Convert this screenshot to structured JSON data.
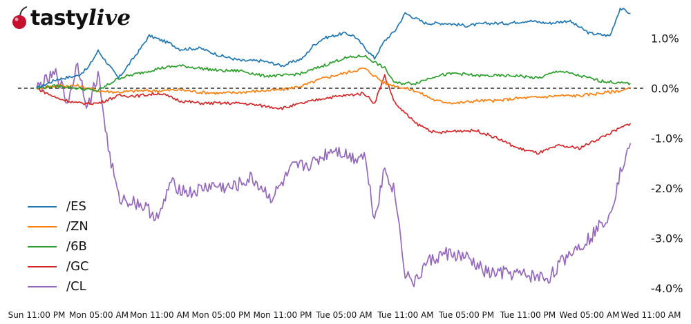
{
  "brand": {
    "name_bold": "tasty",
    "name_italic": "live",
    "logo_icon": "cherry-icon"
  },
  "chart_data": {
    "type": "line",
    "title": "",
    "xlabel": "",
    "ylabel": "",
    "y_unit": "%",
    "ylim": [
      -4.0,
      1.6
    ],
    "y_ticks": [
      "1.0%",
      "0.0%",
      "-1.0%",
      "-2.0%",
      "-3.0%",
      "-4.0%"
    ],
    "y_tick_values": [
      1.0,
      0.0,
      -1.0,
      -2.0,
      -3.0,
      -4.0
    ],
    "x_ticks": [
      "Sun 11:00 PM",
      "Mon 05:00 AM",
      "Mon 11:00 AM",
      "Mon 05:00 PM",
      "Mon 11:00 PM",
      "Tue 05:00 AM",
      "Tue 11:00 AM",
      "Tue 05:00 PM",
      "Tue 11:00 PM",
      "Wed 05:00 AM",
      "Wed 11:00 AM"
    ],
    "reference_line": {
      "y": 0.0,
      "style": "dashed"
    },
    "grid": false,
    "legend_position": "bottom-left",
    "series": [
      {
        "name": "/ES",
        "color": "#1f77b4",
        "x": [
          "Sun 11:00 PM",
          "Mon 01:00 AM",
          "Mon 03:00 AM",
          "Mon 04:00 AM",
          "Mon 05:00 AM",
          "Mon 07:00 AM",
          "Mon 09:00 AM",
          "Mon 10:00 AM",
          "Mon 12:00 PM",
          "Mon 01:00 PM",
          "Mon 03:00 PM",
          "Mon 04:00 PM",
          "Mon 05:00 PM",
          "Mon 07:00 PM",
          "Mon 09:00 PM",
          "Mon 11:00 PM",
          "Tue 01:00 AM",
          "Tue 02:00 AM",
          "Tue 03:00 AM",
          "Tue 05:00 AM",
          "Tue 06:00 AM",
          "Tue 08:00 AM",
          "Tue 09:00 AM",
          "Tue 10:00 AM",
          "Tue 11:00 AM",
          "Tue 01:00 PM",
          "Tue 03:00 PM",
          "Tue 05:00 PM",
          "Tue 07:00 PM",
          "Tue 09:00 PM",
          "Tue 11:00 PM",
          "Wed 01:00 AM",
          "Wed 03:00 AM",
          "Wed 05:00 AM",
          "Wed 07:00 AM",
          "Wed 08:00 AM",
          "Wed 09:00 AM"
        ],
        "values": [
          0.0,
          0.18,
          0.25,
          0.4,
          0.75,
          0.2,
          0.75,
          1.05,
          0.9,
          0.78,
          0.8,
          0.72,
          0.65,
          0.55,
          0.55,
          0.45,
          0.6,
          0.85,
          1.0,
          1.1,
          1.05,
          0.6,
          0.95,
          1.15,
          1.5,
          1.3,
          1.3,
          1.25,
          1.3,
          1.3,
          1.35,
          1.3,
          1.35,
          1.1,
          1.05,
          1.6,
          1.5
        ]
      },
      {
        "name": "/ZN",
        "color": "#ff7f0e",
        "x": [
          "Sun 11:00 PM",
          "Mon 01:00 AM",
          "Mon 03:00 AM",
          "Mon 05:00 AM",
          "Mon 07:00 AM",
          "Mon 09:00 AM",
          "Mon 11:00 AM",
          "Mon 01:00 PM",
          "Mon 03:00 PM",
          "Mon 05:00 PM",
          "Mon 07:00 PM",
          "Mon 09:00 PM",
          "Mon 11:00 PM",
          "Tue 01:00 AM",
          "Tue 03:00 AM",
          "Tue 05:00 AM",
          "Tue 07:00 AM",
          "Tue 09:00 AM",
          "Tue 10:00 AM",
          "Tue 12:00 PM",
          "Tue 02:00 PM",
          "Tue 04:00 PM",
          "Tue 06:00 PM",
          "Tue 08:00 PM",
          "Tue 10:00 PM",
          "Wed 12:00 AM",
          "Wed 02:00 AM",
          "Wed 04:00 AM",
          "Wed 06:00 AM",
          "Wed 08:00 AM",
          "Wed 09:00 AM"
        ],
        "values": [
          0.0,
          0.05,
          0.05,
          -0.05,
          -0.08,
          -0.05,
          -0.05,
          -0.03,
          -0.08,
          -0.1,
          -0.08,
          -0.05,
          -0.03,
          0.05,
          0.2,
          0.3,
          0.4,
          0.1,
          0.05,
          -0.05,
          -0.25,
          -0.3,
          -0.25,
          -0.25,
          -0.2,
          -0.18,
          -0.15,
          -0.15,
          -0.1,
          -0.05,
          0.0
        ]
      },
      {
        "name": "/6B",
        "color": "#2ca02c",
        "x": [
          "Sun 11:00 PM",
          "Mon 01:00 AM",
          "Mon 03:00 AM",
          "Mon 05:00 AM",
          "Mon 07:00 AM",
          "Mon 09:00 AM",
          "Mon 11:00 AM",
          "Mon 01:00 PM",
          "Mon 03:00 PM",
          "Mon 05:00 PM",
          "Mon 07:00 PM",
          "Mon 09:00 PM",
          "Mon 11:00 PM",
          "Tue 01:00 AM",
          "Tue 03:00 AM",
          "Tue 05:00 AM",
          "Tue 07:00 AM",
          "Tue 09:00 AM",
          "Tue 10:00 AM",
          "Tue 12:00 PM",
          "Tue 02:00 PM",
          "Tue 04:00 PM",
          "Tue 06:00 PM",
          "Tue 08:00 PM",
          "Tue 10:00 PM",
          "Wed 12:00 AM",
          "Wed 02:00 AM",
          "Wed 04:00 AM",
          "Wed 06:00 AM",
          "Wed 08:00 AM",
          "Wed 09:00 AM"
        ],
        "values": [
          0.0,
          0.05,
          0.0,
          -0.05,
          0.2,
          0.3,
          0.4,
          0.45,
          0.4,
          0.35,
          0.35,
          0.25,
          0.25,
          0.3,
          0.45,
          0.6,
          0.65,
          0.4,
          0.1,
          0.1,
          0.25,
          0.3,
          0.25,
          0.25,
          0.25,
          0.2,
          0.35,
          0.25,
          0.15,
          0.1,
          0.1
        ]
      },
      {
        "name": "/GC",
        "color": "#d62728",
        "x": [
          "Sun 11:00 PM",
          "Mon 01:00 AM",
          "Mon 03:00 AM",
          "Mon 05:00 AM",
          "Mon 07:00 AM",
          "Mon 09:00 AM",
          "Mon 11:00 AM",
          "Mon 01:00 PM",
          "Mon 03:00 PM",
          "Mon 05:00 PM",
          "Mon 07:00 PM",
          "Mon 09:00 PM",
          "Mon 11:00 PM",
          "Tue 01:00 AM",
          "Tue 03:00 AM",
          "Tue 05:00 AM",
          "Tue 07:00 AM",
          "Tue 08:00 AM",
          "Tue 09:00 AM",
          "Tue 10:00 AM",
          "Tue 12:00 PM",
          "Tue 02:00 PM",
          "Tue 04:00 PM",
          "Tue 06:00 PM",
          "Tue 08:00 PM",
          "Tue 10:00 PM",
          "Wed 12:00 AM",
          "Wed 02:00 AM",
          "Wed 04:00 AM",
          "Wed 06:00 AM",
          "Wed 08:00 AM",
          "Wed 09:00 AM"
        ],
        "values": [
          0.0,
          -0.2,
          -0.3,
          -0.3,
          -0.15,
          -0.15,
          -0.1,
          -0.25,
          -0.3,
          -0.3,
          -0.3,
          -0.35,
          -0.4,
          -0.3,
          -0.2,
          -0.15,
          -0.1,
          -0.3,
          0.25,
          -0.3,
          -0.7,
          -0.9,
          -0.85,
          -0.85,
          -1.0,
          -1.2,
          -1.3,
          -1.15,
          -1.2,
          -1.0,
          -0.8,
          -0.7
        ]
      },
      {
        "name": "/CL",
        "color": "#9467bd",
        "x": [
          "Sun 11:00 PM",
          "Mon 01:00 AM",
          "Mon 02:00 AM",
          "Mon 03:00 AM",
          "Mon 04:00 AM",
          "Mon 05:00 AM",
          "Mon 06:00 AM",
          "Mon 07:00 AM",
          "Mon 09:00 AM",
          "Mon 11:00 AM",
          "Mon 12:00 PM",
          "Mon 02:00 PM",
          "Mon 04:00 PM",
          "Mon 06:00 PM",
          "Mon 08:00 PM",
          "Mon 10:00 PM",
          "Tue 12:00 AM",
          "Tue 02:00 AM",
          "Tue 04:00 AM",
          "Tue 06:00 AM",
          "Tue 07:00 AM",
          "Tue 08:00 AM",
          "Tue 09:00 AM",
          "Tue 10:00 AM",
          "Tue 11:00 AM",
          "Tue 12:00 PM",
          "Tue 01:00 PM",
          "Tue 03:00 PM",
          "Tue 05:00 PM",
          "Tue 07:00 PM",
          "Tue 09:00 PM",
          "Tue 11:00 PM",
          "Wed 01:00 AM",
          "Wed 03:00 AM",
          "Wed 05:00 AM",
          "Wed 07:00 AM",
          "Wed 08:00 AM",
          "Wed 09:00 AM"
        ],
        "values": [
          0.0,
          0.3,
          -0.3,
          0.5,
          -0.4,
          0.3,
          -1.2,
          -2.2,
          -2.3,
          -2.6,
          -1.9,
          -2.1,
          -1.95,
          -2.0,
          -1.8,
          -2.2,
          -1.6,
          -1.5,
          -1.2,
          -1.4,
          -1.3,
          -2.6,
          -1.6,
          -2.1,
          -3.7,
          -3.9,
          -3.5,
          -3.3,
          -3.4,
          -3.7,
          -3.7,
          -3.75,
          -3.8,
          -3.3,
          -3.0,
          -2.5,
          -1.7,
          -1.1
        ]
      }
    ]
  }
}
